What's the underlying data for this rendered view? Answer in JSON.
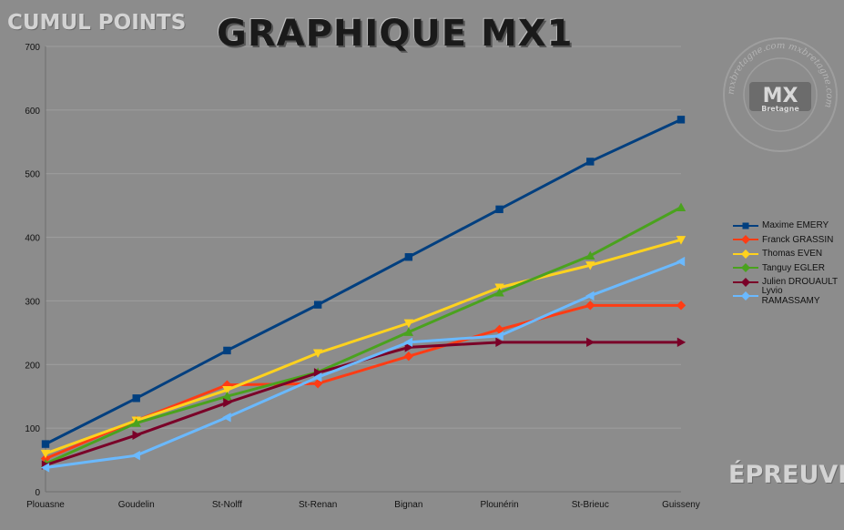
{
  "header": {
    "title": "GRAPHIQUE MX1",
    "y_axis_caption": "CUMUL POINTS",
    "x_axis_caption": "ÉPREUVES"
  },
  "watermark": {
    "text": "mxbretagne.com mxbretagne.com",
    "logo_top": "MX",
    "logo_bottom": "Bretagne"
  },
  "chart_data": {
    "type": "line",
    "categories": [
      "Plouasne",
      "Goudelin",
      "St-Nolff",
      "St-Renan",
      "Bignan",
      "Plounérin",
      "St-Brieuc",
      "Guisseny"
    ],
    "ylim": [
      0,
      700
    ],
    "yticks": [
      0,
      100,
      200,
      300,
      400,
      500,
      600,
      700
    ],
    "grid": true,
    "legend_position": "right",
    "series": [
      {
        "name": "Maxime EMERY",
        "color": "#003f7f",
        "marker": "square",
        "values": [
          75,
          147,
          222,
          294,
          369,
          444,
          519,
          585
        ]
      },
      {
        "name": "Franck GRASSIN",
        "color": "#ff3c14",
        "marker": "diamond",
        "values": [
          52,
          112,
          168,
          170,
          213,
          255,
          293,
          293
        ]
      },
      {
        "name": "Thomas EVEN",
        "color": "#ffd21e",
        "marker": "triangle-down",
        "values": [
          60,
          112,
          160,
          218,
          265,
          321,
          356,
          396
        ]
      },
      {
        "name": "Tanguy EGLER",
        "color": "#4aa21e",
        "marker": "triangle-up",
        "values": [
          44,
          108,
          150,
          188,
          251,
          313,
          371,
          447
        ]
      },
      {
        "name": "Julien DROUAULT",
        "color": "#7a0028",
        "marker": "triangle-right",
        "values": [
          42,
          89,
          140,
          187,
          227,
          235,
          235,
          235
        ]
      },
      {
        "name": "Lyvio RAMASSAMY",
        "color": "#6ab9ff",
        "marker": "triangle-left",
        "values": [
          38,
          57,
          117,
          180,
          235,
          245,
          308,
          362
        ]
      }
    ]
  }
}
